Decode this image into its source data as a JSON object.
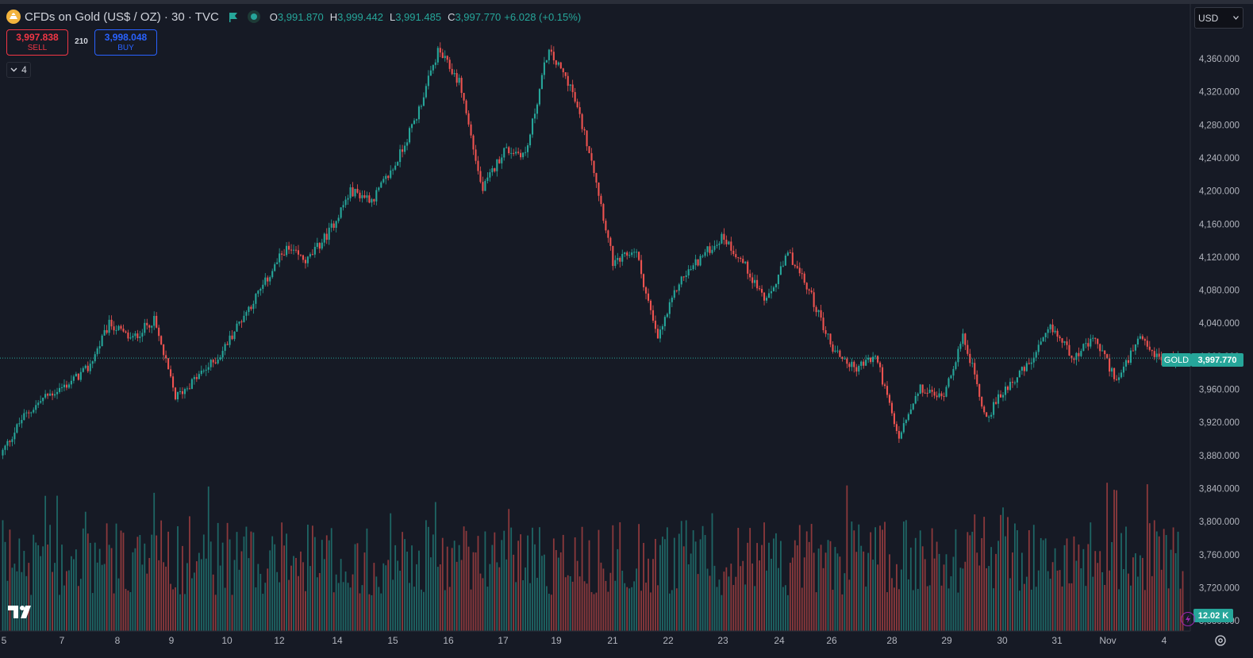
{
  "header": {
    "title": "CFDs on Gold (US$ / OZ) · 30 · TVC",
    "ohlc": {
      "o_label": "O",
      "o": "3,991.870",
      "h_label": "H",
      "h": "3,999.442",
      "l_label": "L",
      "l": "3,991.485",
      "c_label": "C",
      "c": "3,997.770",
      "change": "+6.028 (+0.15%)"
    }
  },
  "trade": {
    "sell_price": "3,997.838",
    "sell_label": "SELL",
    "spread": "210",
    "buy_price": "3,998.048",
    "buy_label": "BUY"
  },
  "indicators_toggle": {
    "count": "4"
  },
  "currency_selector": {
    "value": "USD"
  },
  "icons": {
    "logo": "gold-coin-icon",
    "flag": "flag-icon",
    "status": "market-status-icon",
    "chevron": "chevron-down-icon",
    "brand": "tradingview-logo",
    "bolt": "bolt-icon",
    "settings": "settings-icon"
  },
  "colors": {
    "background": "#161a25",
    "up": "#26a69a",
    "down": "#ef5350",
    "text": "#d1d4dc",
    "sell": "#f23645",
    "buy": "#2962ff",
    "grid_text": "#b2b5be"
  },
  "chart_data": {
    "type": "candlestick",
    "symbol_tag": "GOLD",
    "last_price": "3,997.770",
    "volume_last": "12.02 K",
    "y_ticks": [
      "4,360.000",
      "4,320.000",
      "4,280.000",
      "4,240.000",
      "4,200.000",
      "4,160.000",
      "4,120.000",
      "4,080.000",
      "4,040.000",
      "4,000.000",
      "3,960.000",
      "3,920.000",
      "3,880.000",
      "3,840.000",
      "3,800.000",
      "3,760.000",
      "3,720.000",
      "3,680.000"
    ],
    "y_range": [
      3680,
      4360
    ],
    "x_ticks": [
      "5",
      "7",
      "8",
      "9",
      "10",
      "12",
      "14",
      "15",
      "16",
      "17",
      "19",
      "21",
      "22",
      "23",
      "24",
      "26",
      "28",
      "29",
      "30",
      "31",
      "Nov",
      "4"
    ],
    "price_path": [
      {
        "x": 0,
        "y": 3880
      },
      {
        "x": 1,
        "y": 3925
      },
      {
        "x": 2,
        "y": 3950
      },
      {
        "x": 3,
        "y": 3965
      },
      {
        "x": 4,
        "y": 3985
      },
      {
        "x": 5,
        "y": 4040
      },
      {
        "x": 6,
        "y": 4020
      },
      {
        "x": 7,
        "y": 4045
      },
      {
        "x": 8,
        "y": 3950
      },
      {
        "x": 9,
        "y": 3975
      },
      {
        "x": 10,
        "y": 4000
      },
      {
        "x": 11,
        "y": 4045
      },
      {
        "x": 12,
        "y": 4085
      },
      {
        "x": 13,
        "y": 4130
      },
      {
        "x": 14,
        "y": 4115
      },
      {
        "x": 15,
        "y": 4150
      },
      {
        "x": 16,
        "y": 4200
      },
      {
        "x": 17,
        "y": 4190
      },
      {
        "x": 18,
        "y": 4230
      },
      {
        "x": 19,
        "y": 4290
      },
      {
        "x": 20,
        "y": 4370
      },
      {
        "x": 21,
        "y": 4330
      },
      {
        "x": 22,
        "y": 4200
      },
      {
        "x": 23,
        "y": 4250
      },
      {
        "x": 24,
        "y": 4245
      },
      {
        "x": 25,
        "y": 4370
      },
      {
        "x": 26,
        "y": 4330
      },
      {
        "x": 27,
        "y": 4240
      },
      {
        "x": 28,
        "y": 4110
      },
      {
        "x": 29,
        "y": 4130
      },
      {
        "x": 30,
        "y": 4020
      },
      {
        "x": 31,
        "y": 4090
      },
      {
        "x": 32,
        "y": 4120
      },
      {
        "x": 33,
        "y": 4145
      },
      {
        "x": 34,
        "y": 4110
      },
      {
        "x": 35,
        "y": 4065
      },
      {
        "x": 36,
        "y": 4125
      },
      {
        "x": 37,
        "y": 4075
      },
      {
        "x": 38,
        "y": 4010
      },
      {
        "x": 39,
        "y": 3985
      },
      {
        "x": 40,
        "y": 4000
      },
      {
        "x": 41,
        "y": 3900
      },
      {
        "x": 42,
        "y": 3960
      },
      {
        "x": 43,
        "y": 3950
      },
      {
        "x": 44,
        "y": 4025
      },
      {
        "x": 45,
        "y": 3925
      },
      {
        "x": 46,
        "y": 3965
      },
      {
        "x": 47,
        "y": 3990
      },
      {
        "x": 48,
        "y": 4035
      },
      {
        "x": 49,
        "y": 4000
      },
      {
        "x": 50,
        "y": 4020
      },
      {
        "x": 51,
        "y": 3970
      },
      {
        "x": 52,
        "y": 4020
      },
      {
        "x": 53,
        "y": 3995
      },
      {
        "x": 54,
        "y": 3998
      }
    ]
  }
}
